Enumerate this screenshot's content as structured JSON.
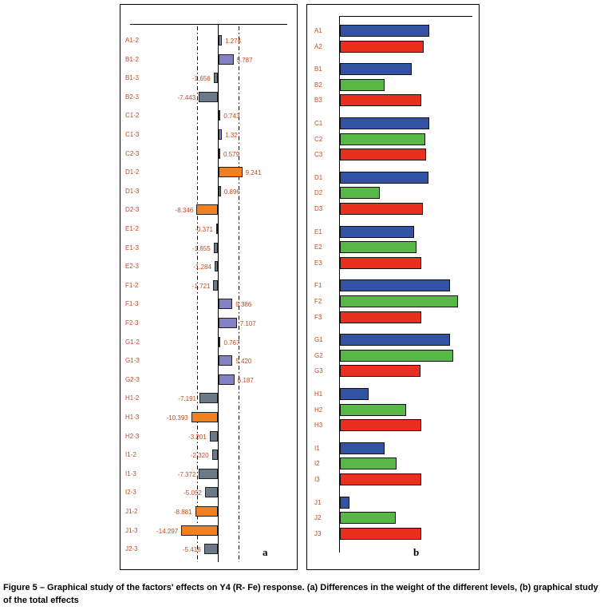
{
  "caption": {
    "text": "Figure 5 – Graphical study of the factors' effects on Y4 (R- Fe) response. (a) Differences in the weight of the different levels, (b) graphical study of the total effects"
  },
  "panels": {
    "a_letter": "a",
    "b_letter": "b"
  },
  "colors": {
    "label_red": "#c6491f",
    "bar_positive": "#8181c3",
    "bar_negative": "#6c7989",
    "bar_significant": "#f08020",
    "bar_blue": "#3352a3",
    "bar_green": "#57b847",
    "bar_red": "#e92f1d",
    "axis_black": "#000000"
  },
  "chart_data": [
    {
      "panel": "a",
      "type": "bar",
      "orientation": "horizontal",
      "title": "",
      "xlabel": "",
      "ylabel": "",
      "xlim": [
        -16,
        11
      ],
      "grid": false,
      "significance_threshold": 8,
      "threshold_lines": [
        -8,
        8
      ],
      "threshold_line_style": "dash-dot",
      "color_rule": {
        "positive": "purple",
        "negative": "gray",
        "abs_above_threshold": "orange"
      },
      "categories": [
        "A1-2",
        "B1-2",
        "B1-3",
        "B2-3",
        "C1-2",
        "C1-3",
        "C2-3",
        "D1-2",
        "D1-3",
        "D2-3",
        "E1-2",
        "E1-3",
        "E2-3",
        "F1-2",
        "F1-3",
        "F2-3",
        "G1-2",
        "G1-3",
        "G2-3",
        "H1-2",
        "H1-3",
        "H2-3",
        "I1-2",
        "I1-3",
        "I2-3",
        "J1-2",
        "J1-3",
        "J2-3"
      ],
      "values": [
        1.274,
        5.787,
        -1.656,
        -7.443,
        0.743,
        1.32,
        0.579,
        9.241,
        0.896,
        -8.346,
        -0.371,
        -1.655,
        -1.284,
        -1.721,
        5.386,
        7.107,
        0.767,
        5.42,
        6.187,
        -7.191,
        -10.393,
        -3.201,
        -2.32,
        -7.372,
        -5.052,
        -8.881,
        -14.297,
        -5.416
      ],
      "value_labels": [
        "1.274",
        "5.787",
        "-1.656",
        "-7.443",
        "0.743",
        "1.32",
        "0.579",
        "9.241",
        "0.896",
        "-8.346",
        "-0.371",
        "-1.655",
        "-1.284",
        "-1.721",
        "5.386",
        "7.107",
        "0.767",
        "5.420",
        "6.187",
        "-7.191",
        "-10.393",
        "-3.201",
        "-2.320",
        "-7.372",
        "-5.052",
        "-8.881",
        "-14.297",
        "-5.416"
      ]
    },
    {
      "panel": "b",
      "type": "bar",
      "orientation": "horizontal",
      "title": "",
      "xlabel": "",
      "ylabel": "",
      "grid": false,
      "axis_tick_labels_shown": false,
      "values_unit": "relative bar length, percent of longest bar (estimated from pixels)",
      "bars": [
        {
          "label": "A1",
          "color": "blue",
          "value": 76
        },
        {
          "label": "A2",
          "color": "red",
          "value": 71
        },
        {
          "label": "B1",
          "color": "blue",
          "value": 61
        },
        {
          "label": "B2",
          "color": "green",
          "value": 38
        },
        {
          "label": "B3",
          "color": "red",
          "value": 69
        },
        {
          "label": "C1",
          "color": "blue",
          "value": 76
        },
        {
          "label": "C2",
          "color": "green",
          "value": 72
        },
        {
          "label": "C3",
          "color": "red",
          "value": 73
        },
        {
          "label": "D1",
          "color": "blue",
          "value": 75
        },
        {
          "label": "D2",
          "color": "green",
          "value": 34
        },
        {
          "label": "D3",
          "color": "red",
          "value": 70
        },
        {
          "label": "E1",
          "color": "blue",
          "value": 63
        },
        {
          "label": "E2",
          "color": "green",
          "value": 65
        },
        {
          "label": "E3",
          "color": "red",
          "value": 69
        },
        {
          "label": "F1",
          "color": "blue",
          "value": 93
        },
        {
          "label": "F2",
          "color": "green",
          "value": 100
        },
        {
          "label": "F3",
          "color": "red",
          "value": 69
        },
        {
          "label": "G1",
          "color": "blue",
          "value": 93
        },
        {
          "label": "G2",
          "color": "green",
          "value": 96
        },
        {
          "label": "G3",
          "color": "red",
          "value": 68
        },
        {
          "label": "H1",
          "color": "blue",
          "value": 24
        },
        {
          "label": "H2",
          "color": "green",
          "value": 56
        },
        {
          "label": "H3",
          "color": "red",
          "value": 69
        },
        {
          "label": "I1",
          "color": "blue",
          "value": 38
        },
        {
          "label": "I2",
          "color": "green",
          "value": 48
        },
        {
          "label": "I3",
          "color": "red",
          "value": 69
        },
        {
          "label": "J1",
          "color": "blue",
          "value": 8
        },
        {
          "label": "J2",
          "color": "green",
          "value": 47
        },
        {
          "label": "J3",
          "color": "red",
          "value": 69
        }
      ]
    }
  ]
}
